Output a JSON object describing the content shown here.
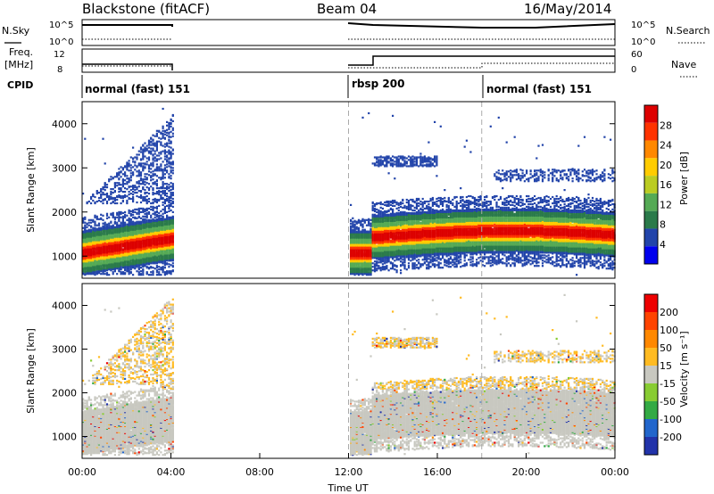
{
  "header": {
    "title_left": "Blackstone (fitACF)",
    "title_center": "Beam 04",
    "title_right": "16/May/2014"
  },
  "left_labels": {
    "nsky": "N.Sky",
    "freq_line1": "Freq.",
    "freq_line2": "[MHz]",
    "cpid": "CPID"
  },
  "right_labels": {
    "nsearch": "N.Search",
    "nave": "Nave"
  },
  "top_panels": {
    "noise_left_ticks": [
      "10^5",
      "10^0"
    ],
    "noise_right_ticks": [
      "10^5",
      "10^0"
    ],
    "freq_left_ticks": [
      "12",
      "8"
    ],
    "freq_right_ticks": [
      "60",
      "0"
    ]
  },
  "cpid_segments": [
    {
      "label": "normal (fast) 151",
      "start_hour": 0
    },
    {
      "label": "rbsp 200",
      "start_hour": 12
    },
    {
      "label": "normal (fast) 151",
      "start_hour": 18
    }
  ],
  "chart_data": [
    {
      "type": "heatmap",
      "name": "power",
      "ylabel": "Slant Range [km]",
      "xlim": [
        0,
        24
      ],
      "ylim": [
        500,
        4500
      ],
      "yticks": [
        "1000",
        "2000",
        "3000",
        "4000"
      ],
      "colorbar_label": "Power [dB]",
      "colorbar_ticks": [
        "4",
        "8",
        "12",
        "16",
        "20",
        "24",
        "28"
      ],
      "colorbar_colors": [
        "#0000ee",
        "#2244aa",
        "#2a7a4a",
        "#55aa55",
        "#bbcc22",
        "#ffcc00",
        "#ff8800",
        "#ff3300",
        "#dd0000"
      ],
      "data_gaps_hours": [
        [
          4.1,
          12.0
        ]
      ]
    },
    {
      "type": "heatmap",
      "name": "velocity",
      "ylabel": "Slant Range [km]",
      "xlabel": "Time UT",
      "xlim": [
        0,
        24
      ],
      "ylim": [
        500,
        4500
      ],
      "yticks": [
        "1000",
        "2000",
        "3000",
        "4000"
      ],
      "xticks": [
        "00:00",
        "04:00",
        "08:00",
        "12:00",
        "16:00",
        "20:00",
        "00:00"
      ],
      "colorbar_label": "Velocity [m s⁻¹]",
      "colorbar_ticks": [
        "200",
        "100",
        "50",
        "15",
        "-15",
        "-50",
        "-100",
        "-200"
      ],
      "colorbar_colors": [
        "#2233aa",
        "#2266cc",
        "#33aa44",
        "#88cc33",
        "#c8c8c0",
        "#ffbb22",
        "#ff8800",
        "#ff4400",
        "#ee0000"
      ],
      "data_gaps_hours": [
        [
          4.1,
          12.0
        ]
      ]
    }
  ]
}
